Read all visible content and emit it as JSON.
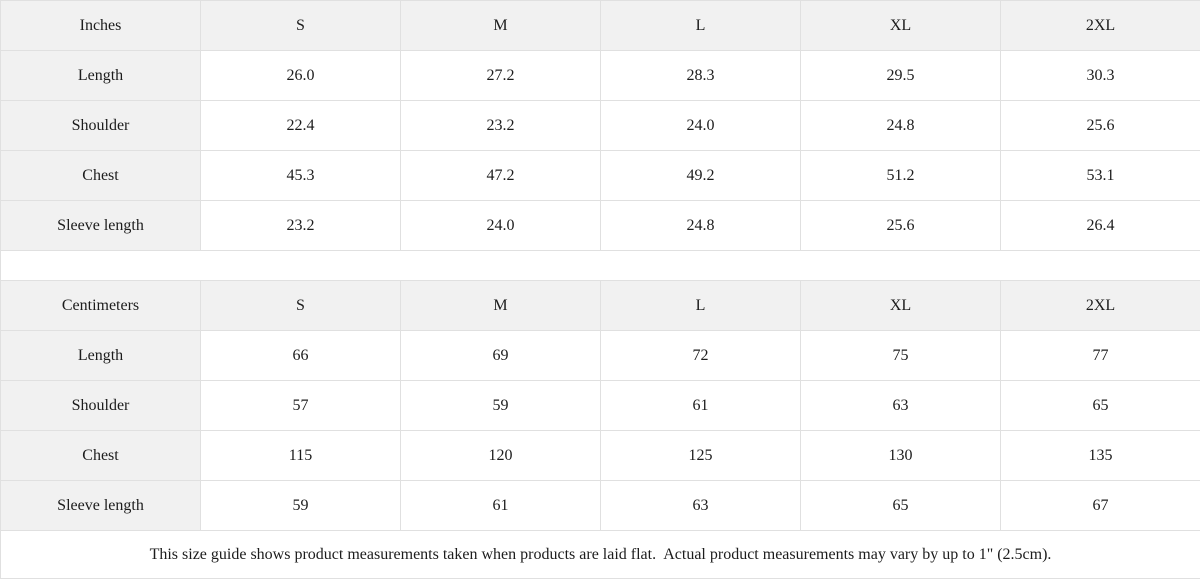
{
  "table_inches": {
    "unit_label": "Inches",
    "sizes": [
      "S",
      "M",
      "L",
      "XL",
      "2XL"
    ],
    "rows": [
      {
        "label": "Length",
        "values": [
          "26.0",
          "27.2",
          "28.3",
          "29.5",
          "30.3"
        ]
      },
      {
        "label": "Shoulder",
        "values": [
          "22.4",
          "23.2",
          "24.0",
          "24.8",
          "25.6"
        ]
      },
      {
        "label": "Chest",
        "values": [
          "45.3",
          "47.2",
          "49.2",
          "51.2",
          "53.1"
        ]
      },
      {
        "label": "Sleeve length",
        "values": [
          "23.2",
          "24.0",
          "24.8",
          "25.6",
          "26.4"
        ]
      }
    ]
  },
  "table_centimeters": {
    "unit_label": "Centimeters",
    "sizes": [
      "S",
      "M",
      "L",
      "XL",
      "2XL"
    ],
    "rows": [
      {
        "label": "Length",
        "values": [
          "66",
          "69",
          "72",
          "75",
          "77"
        ]
      },
      {
        "label": "Shoulder",
        "values": [
          "57",
          "59",
          "61",
          "63",
          "65"
        ]
      },
      {
        "label": "Chest",
        "values": [
          "115",
          "120",
          "125",
          "130",
          "135"
        ]
      },
      {
        "label": "Sleeve length",
        "values": [
          "59",
          "61",
          "63",
          "65",
          "67"
        ]
      }
    ]
  },
  "footer": {
    "note": "This size guide shows product measurements taken when products are laid flat.  Actual product measurements may vary by up to 1\" (2.5cm)."
  },
  "colors": {
    "header_bg": "#f1f1f1",
    "cell_bg": "#ffffff",
    "border": "#e0e0e0",
    "text": "#1c1c1c"
  }
}
